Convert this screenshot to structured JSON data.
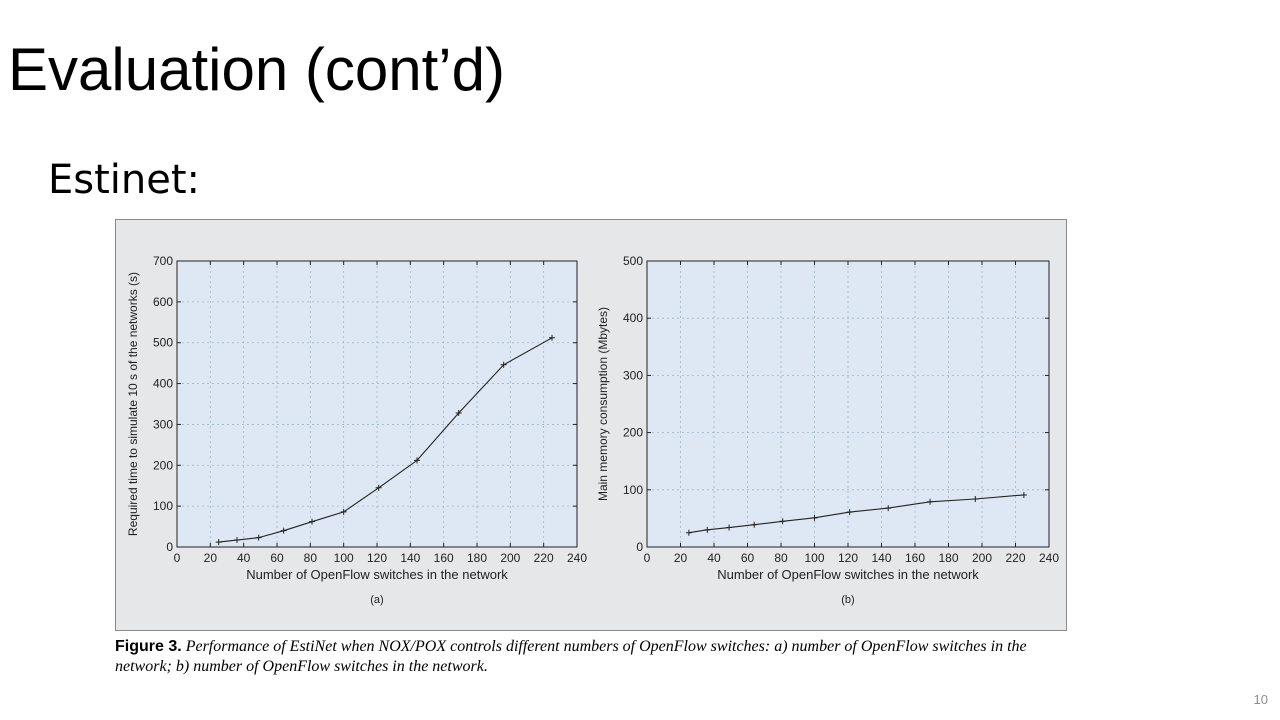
{
  "slide": {
    "title": "Evaluation (cont’d)",
    "subtitle": "Estinet:",
    "page_number": "10"
  },
  "figure": {
    "caption_label": "Figure 3.",
    "caption_text": "Performance of EstiNet when NOX/POX controls different numbers of OpenFlow switches: a) number of OpenFlow switches in the network; b) number of OpenFlow switches in the network.",
    "colors": {
      "panel": "#e6e7e8",
      "plot_area": "#dde8f4",
      "grid": "#9fb3c8",
      "line": "#222222"
    }
  },
  "chart_data": [
    {
      "type": "line",
      "panel_label": "(a)",
      "xlabel": "Number of OpenFlow switches in the network",
      "ylabel": "Required time to simulate 10 s of the networks (s)",
      "xlim": [
        0,
        240
      ],
      "ylim": [
        0,
        700
      ],
      "xticks": [
        0,
        20,
        40,
        60,
        80,
        100,
        120,
        140,
        160,
        180,
        200,
        220,
        240
      ],
      "yticks": [
        0,
        100,
        200,
        300,
        400,
        500,
        600,
        700
      ],
      "grid": true,
      "series": [
        {
          "x": [
            25,
            36,
            49,
            64,
            81,
            100,
            121,
            144,
            169,
            196,
            225
          ],
          "y": [
            12,
            17,
            23,
            40,
            62,
            86,
            145,
            212,
            328,
            446,
            512
          ]
        }
      ]
    },
    {
      "type": "line",
      "panel_label": "(b)",
      "xlabel": "Number of OpenFlow switches in the network",
      "ylabel": "Main memory consumption (Mbytes)",
      "xlim": [
        0,
        240
      ],
      "ylim": [
        0,
        500
      ],
      "xticks": [
        0,
        20,
        40,
        60,
        80,
        100,
        120,
        140,
        160,
        180,
        200,
        220,
        240
      ],
      "yticks": [
        0,
        100,
        200,
        300,
        400,
        500
      ],
      "grid": true,
      "series": [
        {
          "x": [
            25,
            36,
            49,
            64,
            81,
            100,
            121,
            144,
            169,
            196,
            225
          ],
          "y": [
            25,
            30,
            34,
            39,
            45,
            51,
            61,
            68,
            79,
            84,
            91
          ]
        }
      ]
    }
  ]
}
